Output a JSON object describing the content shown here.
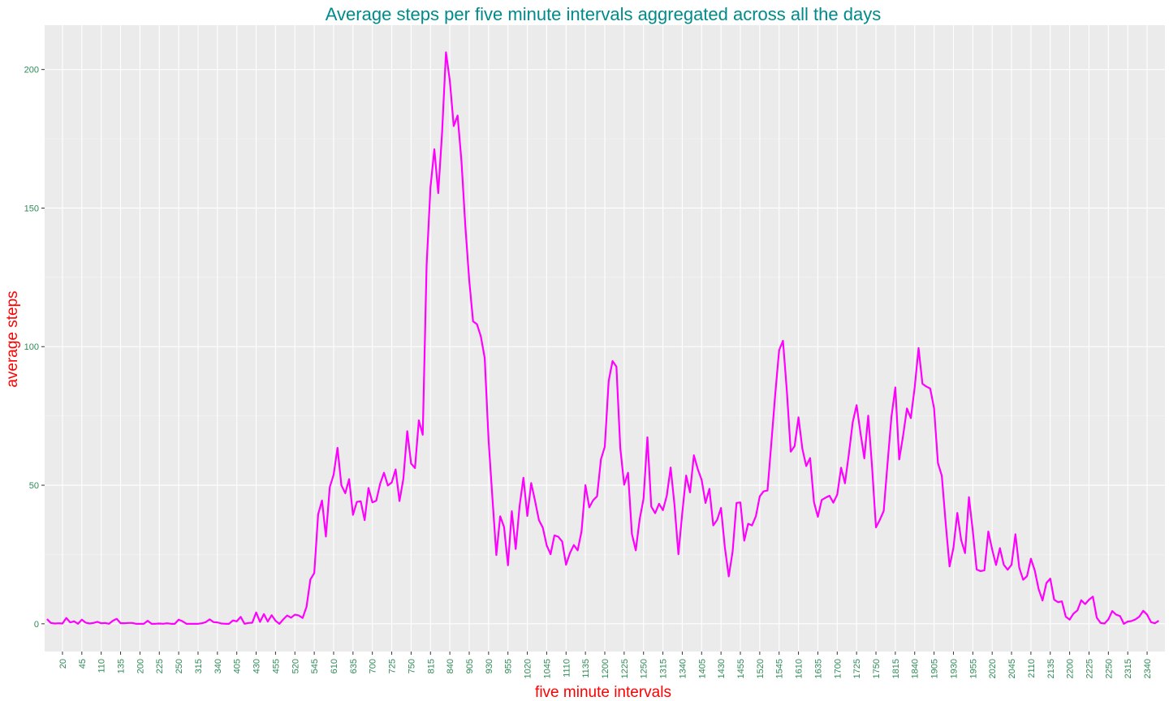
{
  "colors": {
    "panel": "#EBEBEB",
    "grid_major": "#FFFFFF",
    "grid_minor": "#F5F5F5",
    "line": "#FF00FF",
    "title": "#008B8B",
    "axis_title": "#FF0000",
    "tick_label": "#2E8B57"
  },
  "chart_data": {
    "type": "line",
    "title": "Average steps per five minute intervals aggregated across all the days",
    "xlabel": "five minute intervals",
    "ylabel": "average steps",
    "ylim": [
      -10,
      216
    ],
    "yticks": [
      0,
      50,
      100,
      150,
      200
    ],
    "grid": true,
    "categories": [
      "0",
      "5",
      "10",
      "15",
      "20",
      "25",
      "30",
      "35",
      "40",
      "45",
      "50",
      "55",
      "100",
      "105",
      "110",
      "115",
      "120",
      "125",
      "130",
      "135",
      "140",
      "145",
      "150",
      "155",
      "200",
      "205",
      "210",
      "215",
      "220",
      "225",
      "230",
      "235",
      "240",
      "245",
      "250",
      "255",
      "300",
      "305",
      "310",
      "315",
      "320",
      "325",
      "330",
      "335",
      "340",
      "345",
      "350",
      "355",
      "400",
      "405",
      "410",
      "415",
      "420",
      "425",
      "430",
      "435",
      "440",
      "445",
      "450",
      "455",
      "500",
      "505",
      "510",
      "515",
      "520",
      "525",
      "530",
      "535",
      "540",
      "545",
      "550",
      "555",
      "600",
      "605",
      "610",
      "615",
      "620",
      "625",
      "630",
      "635",
      "640",
      "645",
      "650",
      "655",
      "700",
      "705",
      "710",
      "715",
      "720",
      "725",
      "730",
      "735",
      "740",
      "745",
      "750",
      "755",
      "800",
      "805",
      "810",
      "815",
      "820",
      "825",
      "830",
      "835",
      "840",
      "845",
      "850",
      "855",
      "900",
      "905",
      "910",
      "915",
      "920",
      "925",
      "930",
      "935",
      "940",
      "945",
      "950",
      "955",
      "1000",
      "1005",
      "1010",
      "1015",
      "1020",
      "1025",
      "1030",
      "1035",
      "1040",
      "1045",
      "1050",
      "1055",
      "1100",
      "1105",
      "1110",
      "1115",
      "1120",
      "1125",
      "1130",
      "1135",
      "1140",
      "1145",
      "1150",
      "1155",
      "1200",
      "1205",
      "1210",
      "1215",
      "1220",
      "1225",
      "1230",
      "1235",
      "1240",
      "1245",
      "1250",
      "1255",
      "1300",
      "1305",
      "1310",
      "1315",
      "1320",
      "1325",
      "1330",
      "1335",
      "1340",
      "1345",
      "1350",
      "1355",
      "1400",
      "1405",
      "1410",
      "1415",
      "1420",
      "1425",
      "1430",
      "1435",
      "1440",
      "1445",
      "1450",
      "1455",
      "1500",
      "1505",
      "1510",
      "1515",
      "1520",
      "1525",
      "1530",
      "1535",
      "1540",
      "1545",
      "1550",
      "1555",
      "1600",
      "1605",
      "1610",
      "1615",
      "1620",
      "1625",
      "1630",
      "1635",
      "1640",
      "1645",
      "1650",
      "1655",
      "1700",
      "1705",
      "1710",
      "1715",
      "1720",
      "1725",
      "1730",
      "1735",
      "1740",
      "1745",
      "1750",
      "1755",
      "1800",
      "1805",
      "1810",
      "1815",
      "1820",
      "1825",
      "1830",
      "1835",
      "1840",
      "1845",
      "1850",
      "1855",
      "1900",
      "1905",
      "1910",
      "1915",
      "1920",
      "1925",
      "1930",
      "1935",
      "1940",
      "1945",
      "1950",
      "1955",
      "2000",
      "2005",
      "2010",
      "2015",
      "2020",
      "2025",
      "2030",
      "2035",
      "2040",
      "2045",
      "2050",
      "2055",
      "2100",
      "2105",
      "2110",
      "2115",
      "2120",
      "2125",
      "2130",
      "2135",
      "2140",
      "2145",
      "2150",
      "2155",
      "2200",
      "2205",
      "2210",
      "2215",
      "2220",
      "2225",
      "2230",
      "2235",
      "2240",
      "2245",
      "2250",
      "2255",
      "2300",
      "2305",
      "2310",
      "2315",
      "2320",
      "2325",
      "2330",
      "2335",
      "2340",
      "2345",
      "2350",
      "2355"
    ],
    "tick_labels": [
      "20",
      "45",
      "110",
      "135",
      "200",
      "225",
      "250",
      "315",
      "340",
      "405",
      "430",
      "455",
      "520",
      "545",
      "610",
      "635",
      "700",
      "725",
      "750",
      "815",
      "840",
      "905",
      "930",
      "955",
      "1020",
      "1045",
      "1110",
      "1135",
      "1200",
      "1225",
      "1250",
      "1315",
      "1340",
      "1405",
      "1430",
      "1455",
      "1520",
      "1545",
      "1610",
      "1635",
      "1700",
      "1725",
      "1750",
      "1815",
      "1840",
      "1905",
      "1930",
      "1955",
      "2020",
      "2045",
      "2110",
      "2135",
      "2200",
      "2225",
      "2250",
      "2315",
      "2340"
    ],
    "anchors": [
      [
        "0",
        1.7
      ],
      [
        "5",
        0.3
      ],
      [
        "10",
        0.1
      ],
      [
        "15",
        0.2
      ],
      [
        "20",
        0.1
      ],
      [
        "25",
        2.1
      ],
      [
        "30",
        0.5
      ],
      [
        "35",
        0.9
      ],
      [
        "40",
        0.0
      ],
      [
        "45",
        1.5
      ],
      [
        "50",
        0.4
      ],
      [
        "55",
        0.1
      ],
      [
        "100",
        0.3
      ],
      [
        "105",
        0.7
      ],
      [
        "110",
        0.2
      ],
      [
        "115",
        0.3
      ],
      [
        "120",
        0.0
      ],
      [
        "125",
        1.1
      ],
      [
        "130",
        1.8
      ],
      [
        "135",
        0.2
      ],
      [
        "140",
        0.2
      ],
      [
        "145",
        0.3
      ],
      [
        "150",
        0.3
      ],
      [
        "155",
        0.0
      ],
      [
        "200",
        0.0
      ],
      [
        "205",
        0.0
      ],
      [
        "210",
        1.1
      ],
      [
        "215",
        0.0
      ],
      [
        "220",
        0.0
      ],
      [
        "225",
        0.1
      ],
      [
        "230",
        0.0
      ],
      [
        "235",
        0.2
      ],
      [
        "240",
        0.0
      ],
      [
        "245",
        0.0
      ],
      [
        "250",
        1.5
      ],
      [
        "255",
        0.9
      ],
      [
        "300",
        0.0
      ],
      [
        "305",
        0.0
      ],
      [
        "310",
        0.0
      ],
      [
        "315",
        0.0
      ],
      [
        "320",
        0.2
      ],
      [
        "325",
        0.6
      ],
      [
        "330",
        1.6
      ],
      [
        "335",
        0.6
      ],
      [
        "340",
        0.5
      ],
      [
        "345",
        0.1
      ],
      [
        "350",
        0.0
      ],
      [
        "355",
        0.0
      ],
      [
        "400",
        1.2
      ],
      [
        "405",
        0.9
      ],
      [
        "410",
        2.5
      ],
      [
        "415",
        0.0
      ],
      [
        "420",
        0.3
      ],
      [
        "425",
        0.4
      ],
      [
        "430",
        4.1
      ],
      [
        "435",
        0.7
      ],
      [
        "440",
        3.5
      ],
      [
        "445",
        0.8
      ],
      [
        "450",
        3.1
      ],
      [
        "455",
        1.1
      ],
      [
        "500",
        0.0
      ],
      [
        "505",
        1.6
      ],
      [
        "510",
        3.0
      ],
      [
        "515",
        2.2
      ],
      [
        "520",
        3.3
      ],
      [
        "525",
        3.0
      ],
      [
        "530",
        2.1
      ],
      [
        "535",
        6.1
      ],
      [
        "540",
        16.0
      ],
      [
        "545",
        18.3
      ],
      [
        "550",
        39.5
      ],
      [
        "555",
        44.5
      ],
      [
        "600",
        31.5
      ],
      [
        "605",
        49.3
      ],
      [
        "610",
        53.8
      ],
      [
        "615",
        63.5
      ],
      [
        "620",
        50.0
      ],
      [
        "625",
        47.1
      ],
      [
        "630",
        52.2
      ],
      [
        "635",
        39.3
      ],
      [
        "640",
        44.0
      ],
      [
        "645",
        44.2
      ],
      [
        "650",
        37.4
      ],
      [
        "655",
        49.0
      ],
      [
        "700",
        43.8
      ],
      [
        "705",
        44.4
      ],
      [
        "710",
        50.5
      ],
      [
        "715",
        54.5
      ],
      [
        "720",
        49.9
      ],
      [
        "725",
        51.0
      ],
      [
        "730",
        55.7
      ],
      [
        "735",
        44.3
      ],
      [
        "740",
        52.3
      ],
      [
        "745",
        69.5
      ],
      [
        "750",
        57.8
      ],
      [
        "755",
        56.2
      ],
      [
        "800",
        73.4
      ],
      [
        "805",
        68.2
      ],
      [
        "810",
        129.4
      ],
      [
        "815",
        157.5
      ],
      [
        "820",
        171.2
      ],
      [
        "825",
        155.4
      ],
      [
        "830",
        177.3
      ],
      [
        "835",
        206.2
      ],
      [
        "840",
        195.9
      ],
      [
        "845",
        179.6
      ],
      [
        "850",
        183.4
      ],
      [
        "855",
        167.0
      ],
      [
        "900",
        143.5
      ],
      [
        "905",
        124.0
      ],
      [
        "910",
        109.1
      ],
      [
        "915",
        108.1
      ],
      [
        "920",
        103.7
      ],
      [
        "925",
        95.9
      ],
      [
        "930",
        66.2
      ],
      [
        "935",
        45.2
      ],
      [
        "940",
        24.8
      ],
      [
        "945",
        38.8
      ],
      [
        "950",
        34.9
      ],
      [
        "955",
        21.1
      ],
      [
        "1000",
        40.6
      ],
      [
        "1005",
        27.0
      ],
      [
        "1010",
        42.4
      ],
      [
        "1015",
        52.7
      ],
      [
        "1020",
        38.9
      ],
      [
        "1025",
        50.8
      ],
      [
        "1030",
        44.3
      ],
      [
        "1035",
        37.4
      ],
      [
        "1040",
        34.7
      ],
      [
        "1045",
        28.3
      ],
      [
        "1050",
        25.1
      ],
      [
        "1055",
        31.9
      ],
      [
        "1100",
        31.4
      ],
      [
        "1105",
        29.7
      ],
      [
        "1110",
        21.3
      ],
      [
        "1115",
        25.5
      ],
      [
        "1120",
        28.4
      ],
      [
        "1125",
        26.5
      ],
      [
        "1130",
        33.4
      ],
      [
        "1135",
        50.0
      ],
      [
        "1140",
        42.0
      ],
      [
        "1145",
        44.6
      ],
      [
        "1150",
        46.0
      ],
      [
        "1155",
        59.3
      ],
      [
        "1200",
        63.9
      ],
      [
        "1205",
        87.6
      ],
      [
        "1210",
        94.8
      ],
      [
        "1215",
        92.8
      ],
      [
        "1220",
        63.4
      ],
      [
        "1225",
        50.2
      ],
      [
        "1230",
        54.5
      ],
      [
        "1235",
        32.4
      ],
      [
        "1240",
        26.5
      ],
      [
        "1245",
        37.7
      ],
      [
        "1250",
        45.1
      ],
      [
        "1255",
        67.3
      ],
      [
        "1300",
        42.3
      ],
      [
        "1305",
        39.9
      ],
      [
        "1310",
        43.3
      ],
      [
        "1315",
        40.98
      ],
      [
        "1320",
        46.2
      ],
      [
        "1325",
        56.4
      ],
      [
        "1330",
        42.8
      ],
      [
        "1335",
        25.1
      ],
      [
        "1340",
        40.0
      ],
      [
        "1345",
        53.5
      ],
      [
        "1350",
        47.4
      ],
      [
        "1355",
        60.8
      ],
      [
        "1400",
        55.8
      ],
      [
        "1405",
        51.96
      ],
      [
        "1410",
        43.6
      ],
      [
        "1415",
        48.7
      ],
      [
        "1420",
        35.5
      ],
      [
        "1425",
        37.5
      ],
      [
        "1430",
        41.8
      ],
      [
        "1435",
        27.5
      ],
      [
        "1440",
        17.1
      ],
      [
        "1445",
        26.1
      ],
      [
        "1450",
        43.6
      ],
      [
        "1455",
        43.8
      ],
      [
        "1500",
        30.0
      ],
      [
        "1505",
        36.1
      ],
      [
        "1510",
        35.5
      ],
      [
        "1515",
        38.8
      ],
      [
        "1520",
        45.96
      ],
      [
        "1525",
        47.8
      ],
      [
        "1530",
        48.1
      ],
      [
        "1535",
        65.3
      ],
      [
        "1540",
        82.9
      ],
      [
        "1545",
        98.7
      ],
      [
        "1550",
        102.1
      ],
      [
        "1555",
        84.0
      ],
      [
        "1600",
        62.1
      ],
      [
        "1605",
        64.1
      ],
      [
        "1610",
        74.5
      ],
      [
        "1615",
        63.2
      ],
      [
        "1620",
        56.9
      ],
      [
        "1625",
        59.8
      ],
      [
        "1630",
        43.9
      ],
      [
        "1635",
        38.6
      ],
      [
        "1640",
        44.7
      ],
      [
        "1645",
        45.5
      ],
      [
        "1650",
        46.2
      ],
      [
        "1655",
        43.7
      ],
      [
        "1700",
        46.6
      ],
      [
        "1705",
        56.3
      ],
      [
        "1710",
        50.7
      ],
      [
        "1715",
        61.2
      ],
      [
        "1720",
        72.7
      ],
      [
        "1725",
        78.9
      ],
      [
        "1730",
        68.9
      ],
      [
        "1735",
        59.7
      ],
      [
        "1740",
        75.1
      ],
      [
        "1745",
        56.5
      ],
      [
        "1750",
        34.8
      ],
      [
        "1755",
        37.5
      ],
      [
        "1800",
        40.7
      ],
      [
        "1805",
        58.0
      ],
      [
        "1810",
        74.7
      ],
      [
        "1815",
        85.3
      ],
      [
        "1820",
        59.3
      ],
      [
        "1825",
        67.8
      ],
      [
        "1830",
        77.7
      ],
      [
        "1835",
        74.2
      ],
      [
        "1840",
        85.3
      ],
      [
        "1845",
        99.5
      ],
      [
        "1850",
        86.6
      ],
      [
        "1855",
        85.6
      ],
      [
        "1900",
        84.9
      ],
      [
        "1905",
        77.8
      ],
      [
        "1910",
        58.0
      ],
      [
        "1915",
        53.4
      ],
      [
        "1920",
        36.3
      ],
      [
        "1925",
        20.7
      ],
      [
        "1930",
        27.4
      ],
      [
        "1935",
        40.0
      ],
      [
        "1940",
        30.2
      ],
      [
        "1945",
        25.5
      ],
      [
        "1950",
        45.7
      ],
      [
        "1955",
        33.5
      ],
      [
        "2000",
        19.6
      ],
      [
        "2005",
        19.0
      ],
      [
        "2010",
        19.3
      ],
      [
        "2015",
        33.3
      ],
      [
        "2020",
        26.8
      ],
      [
        "2025",
        21.2
      ],
      [
        "2030",
        27.3
      ],
      [
        "2035",
        21.3
      ],
      [
        "2040",
        19.5
      ],
      [
        "2045",
        21.3
      ],
      [
        "2050",
        32.3
      ],
      [
        "2055",
        20.2
      ],
      [
        "2100",
        15.9
      ],
      [
        "2105",
        17.2
      ],
      [
        "2110",
        23.5
      ],
      [
        "2115",
        19.2
      ],
      [
        "2120",
        12.5
      ],
      [
        "2125",
        8.4
      ],
      [
        "2130",
        14.7
      ],
      [
        "2135",
        16.3
      ],
      [
        "2140",
        8.7
      ],
      [
        "2145",
        7.8
      ],
      [
        "2150",
        8.1
      ],
      [
        "2155",
        2.6
      ],
      [
        "2200",
        1.5
      ],
      [
        "2205",
        3.7
      ],
      [
        "2210",
        4.8
      ],
      [
        "2215",
        8.5
      ],
      [
        "2220",
        7.1
      ],
      [
        "2225",
        8.7
      ],
      [
        "2230",
        9.8
      ],
      [
        "2235",
        2.2
      ],
      [
        "2240",
        0.3
      ],
      [
        "2245",
        0.1
      ],
      [
        "2250",
        1.6
      ],
      [
        "2255",
        4.6
      ],
      [
        "2300",
        3.3
      ],
      [
        "2305",
        2.8
      ],
      [
        "2310",
        0.0
      ],
      [
        "2315",
        0.8
      ],
      [
        "2320",
        1.0
      ],
      [
        "2325",
        1.6
      ],
      [
        "2330",
        2.6
      ],
      [
        "2335",
        4.7
      ],
      [
        "2340",
        3.3
      ],
      [
        "2345",
        0.6
      ],
      [
        "2350",
        0.2
      ],
      [
        "2355",
        1.1
      ]
    ]
  }
}
